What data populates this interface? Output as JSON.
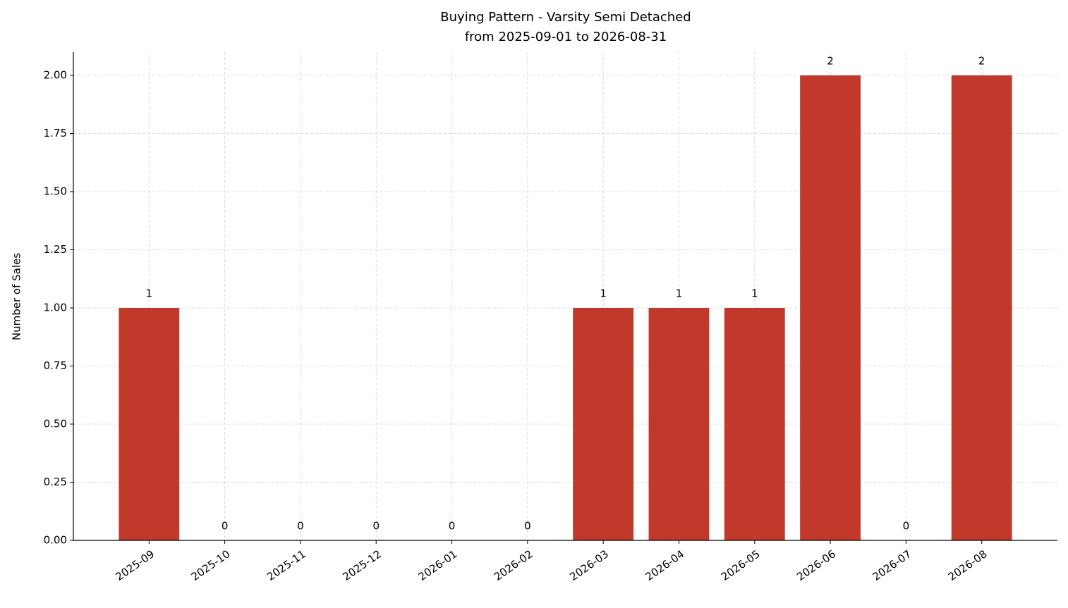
{
  "chart_data": {
    "type": "bar",
    "title": "Buying Pattern - Varsity Semi Detached",
    "subtitle": "from 2025-09-01 to 2026-08-31",
    "y_label": "Number of Sales",
    "categories": [
      "2025-09",
      "2025-10",
      "2025-11",
      "2025-12",
      "2026-01",
      "2026-02",
      "2026-03",
      "2026-04",
      "2026-05",
      "2026-06",
      "2026-07",
      "2026-08"
    ],
    "values": [
      1,
      0,
      0,
      0,
      0,
      0,
      1,
      1,
      1,
      2,
      0,
      2
    ],
    "color": "#c0392b",
    "ylim": [
      0,
      2.1
    ],
    "yticks": [
      {
        "value": 0,
        "label": "0.00"
      },
      {
        "value": 0.25,
        "label": "0.25"
      },
      {
        "value": 0.5,
        "label": "0.50"
      },
      {
        "value": 0.75,
        "label": "0.75"
      },
      {
        "value": 1,
        "label": "1.00"
      },
      {
        "value": 1.25,
        "label": "1.25"
      },
      {
        "value": 1.5,
        "label": "1.50"
      },
      {
        "value": 1.75,
        "label": "1.75"
      },
      {
        "value": 2,
        "label": "2.00"
      }
    ],
    "grid": true
  }
}
